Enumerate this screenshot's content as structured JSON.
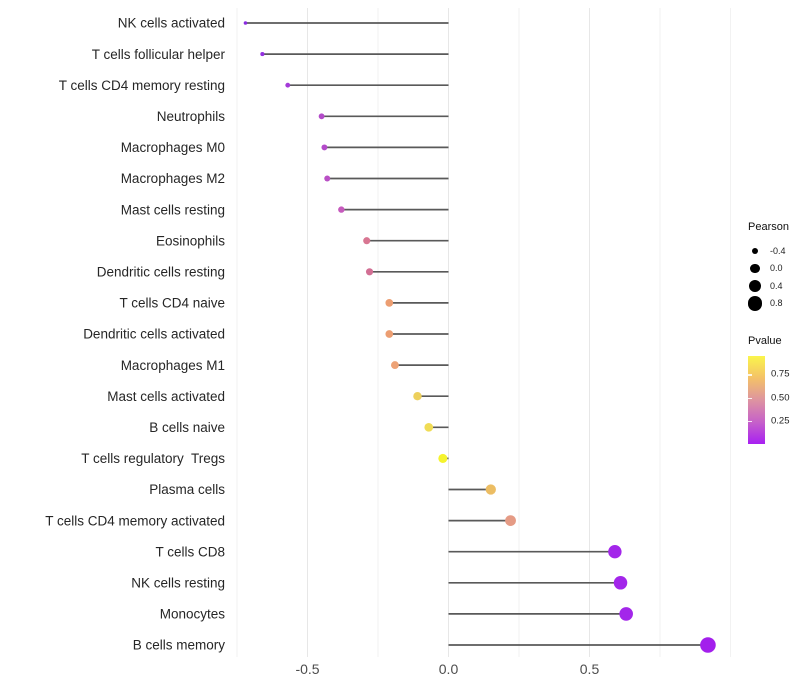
{
  "chart_data": {
    "type": "scatter",
    "variant": "lollipop-horizontal",
    "title": "",
    "xlabel": "",
    "ylabel": "",
    "xlim": [
      -0.775,
      1.035
    ],
    "x_tick_labels": [
      "-0.5",
      "0.0",
      "0.5"
    ],
    "x_tick_values": [
      -0.5,
      0.0,
      0.5
    ],
    "x_minor_grid_values": [
      -0.75,
      -0.25,
      0.25,
      0.75,
      1.0
    ],
    "grid": "vertical-only-light-gray",
    "legend_position": "right",
    "categories": [
      "NK cells activated",
      "T cells follicular helper",
      "T cells CD4 memory resting",
      "Neutrophils",
      "Macrophages M0",
      "Macrophages M2",
      "Mast cells resting",
      "Eosinophils",
      "Dendritic cells resting",
      "T cells CD4 naive",
      "Dendritic cells activated",
      "Macrophages M1",
      "Mast cells activated",
      "B cells naive",
      "T cells regulatory  Tregs",
      "Plasma cells",
      "T cells CD4 memory activated",
      "T cells CD8",
      "NK cells resting",
      "Monocytes",
      "B cells memory"
    ],
    "series": [
      {
        "name": "Pearson",
        "values": [
          -0.72,
          -0.66,
          -0.57,
          -0.45,
          -0.44,
          -0.43,
          -0.38,
          -0.29,
          -0.28,
          -0.21,
          -0.21,
          -0.19,
          -0.11,
          -0.07,
          -0.02,
          0.15,
          0.22,
          0.59,
          0.61,
          0.63,
          0.92
        ]
      }
    ],
    "point_colors": [
      "#8A2BE0",
      "#9330E0",
      "#A43BD8",
      "#B34BC9",
      "#B34BC9",
      "#B950C5",
      "#C65ABD",
      "#D87692",
      "#D26F94",
      "#EC9E72",
      "#EC9E72",
      "#EDA276",
      "#EDD05C",
      "#F0DC55",
      "#F5F32E",
      "#ECBD63",
      "#E59B85",
      "#A326EA",
      "#A326EA",
      "#A326EA",
      "#A31FEC"
    ],
    "stem_color": "#595959",
    "size_legend": {
      "title": "Pearson",
      "dot_color": "#000000",
      "entries": [
        {
          "label": "-0.4",
          "value": -0.4
        },
        {
          "label": "0.0",
          "value": 0.0
        },
        {
          "label": "0.4",
          "value": 0.4
        },
        {
          "label": "0.8",
          "value": 0.8
        }
      ]
    },
    "color_legend": {
      "title": "Pvalue",
      "tick_labels": [
        "0.75",
        "0.50",
        "0.25"
      ],
      "tick_values": [
        0.75,
        0.5,
        0.25
      ],
      "range_bottom_to_top": [
        0.0,
        0.946
      ],
      "gradient_stops_top_to_bottom": [
        "#FAF54B",
        "#F4C168",
        "#DE94A0",
        "#C661C9",
        "#A820F2"
      ]
    }
  }
}
